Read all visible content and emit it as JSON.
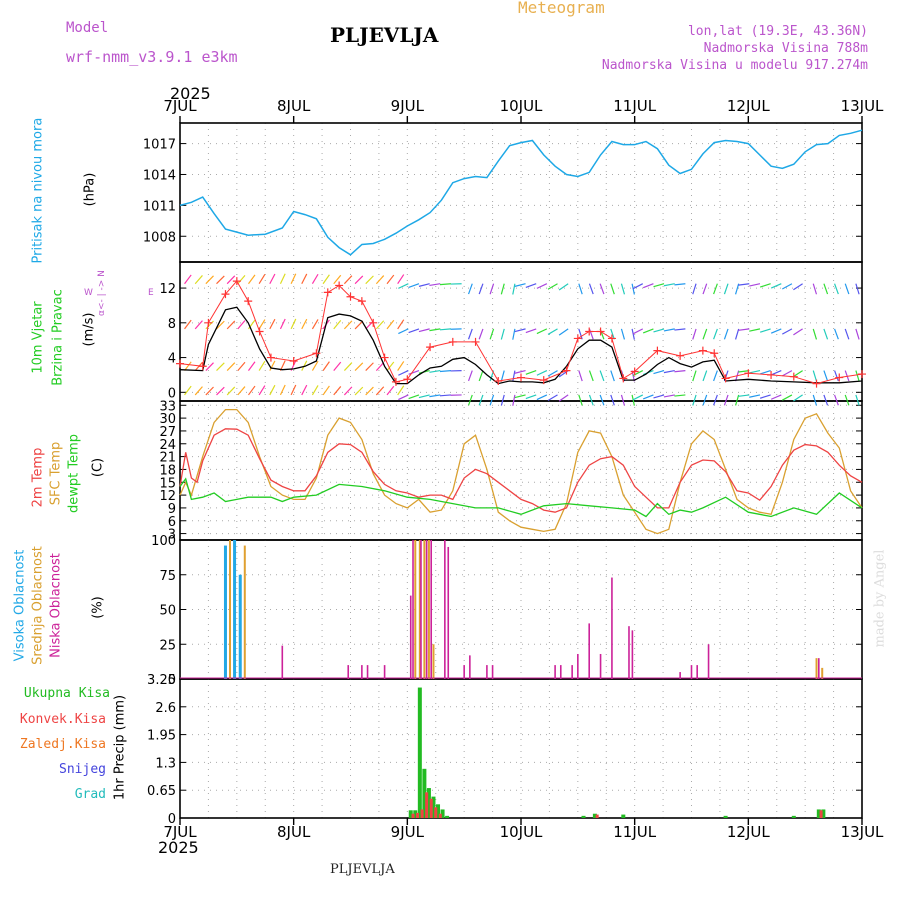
{
  "header": {
    "model_label": "Model",
    "model_name": "wrf-nmm_v3.9.1  e3km",
    "station": "PLJEVLJA",
    "meteogram": "Meteogram",
    "lonlat": "lon,lat (19.3E, 43.36N)",
    "altitude": "Nadmorska Visina 788m",
    "model_altitude": "Nadmorska Visina u modelu 917.274m",
    "year": "2025",
    "footer_station": "PLJEVLJA",
    "credit": "made by Angel"
  },
  "colors": {
    "pressure": "#1ea8e6",
    "wind_speed": "#000000",
    "gust": "#ff3333",
    "temp2m": "#ee4444",
    "sfc_temp": "#d9a030",
    "dewpoint": "#22cc22",
    "high_cloud": "#22a8e6",
    "mid_cloud": "#e0a030",
    "low_cloud": "#cc2299",
    "total_precip": "#22bb22",
    "conv_precip": "#ee4444",
    "frz_precip": "#ee7722",
    "snow": "#4444dd",
    "hail": "#22bbbb",
    "model_label": "#bb55cc",
    "meteogram_label": "#e8b050"
  },
  "icons": {
    "compass": "wind-direction-compass-icon",
    "barbs": "wind-arrow-icon"
  },
  "chart_data": [
    {
      "type": "line",
      "title": "Pritisak na nivou mora",
      "ylabel": "(hPa)",
      "x_ticks": [
        "7JUL",
        "8JUL",
        "9JUL",
        "10JUL",
        "11JUL",
        "12JUL",
        "13JUL"
      ],
      "ylim": [
        1005.5,
        1019
      ],
      "yticks": [
        1008,
        1011,
        1014,
        1017
      ],
      "series": [
        {
          "name": "Pritisak na nivou mora",
          "x": [
            0,
            0.1,
            0.2,
            0.3,
            0.4,
            0.5,
            0.6,
            0.75,
            0.9,
            1.0,
            1.1,
            1.2,
            1.3,
            1.4,
            1.5,
            1.6,
            1.7,
            1.8,
            1.9,
            2.0,
            2.1,
            2.2,
            2.3,
            2.4,
            2.5,
            2.6,
            2.7,
            2.8,
            2.9,
            3.0,
            3.1,
            3.2,
            3.3,
            3.4,
            3.5,
            3.6,
            3.7,
            3.8,
            3.9,
            4.0,
            4.1,
            4.2,
            4.3,
            4.4,
            4.5,
            4.6,
            4.7,
            4.8,
            4.9,
            5.0,
            5.1,
            5.2,
            5.3,
            5.4,
            5.5,
            5.6,
            5.7,
            5.8,
            5.9,
            6.0
          ],
          "values": [
            1011.0,
            1011.3,
            1011.8,
            1010.2,
            1008.7,
            1008.4,
            1008.1,
            1008.2,
            1008.8,
            1010.4,
            1010.1,
            1009.7,
            1007.9,
            1006.9,
            1006.2,
            1007.2,
            1007.3,
            1007.7,
            1008.3,
            1009.0,
            1009.6,
            1010.3,
            1011.5,
            1013.2,
            1013.6,
            1013.8,
            1013.7,
            1015.3,
            1016.8,
            1017.1,
            1017.3,
            1015.9,
            1014.8,
            1014.0,
            1013.8,
            1014.2,
            1015.9,
            1017.2,
            1016.9,
            1016.9,
            1017.2,
            1016.5,
            1014.9,
            1014.1,
            1014.5,
            1016.0,
            1017.1,
            1017.3,
            1017.2,
            1017.0,
            1015.9,
            1014.8,
            1014.6,
            1015.0,
            1016.2,
            1016.9,
            1017.0,
            1017.8,
            1018.0,
            1018.3
          ]
        }
      ]
    },
    {
      "type": "line",
      "title": "10m Vjetar Brzina i Pravac",
      "ylabel": "(m/s)",
      "compass_label": "W <-- | --> E   α<--|-->",
      "compass_n": "N",
      "compass_w": "W",
      "compass_e": "E",
      "compass_s": "α<-",
      "ylim": [
        -1,
        15
      ],
      "yticks": [
        0,
        4,
        8,
        12
      ],
      "series": [
        {
          "name": "speed",
          "x": [
            0,
            0.2,
            0.25,
            0.4,
            0.5,
            0.6,
            0.7,
            0.8,
            0.9,
            1.0,
            1.1,
            1.2,
            1.3,
            1.4,
            1.5,
            1.6,
            1.7,
            1.8,
            1.9,
            2.0,
            2.1,
            2.2,
            2.3,
            2.4,
            2.5,
            2.6,
            2.7,
            2.8,
            2.9,
            3.0,
            3.1,
            3.2,
            3.3,
            3.4,
            3.5,
            3.6,
            3.7,
            3.8,
            3.9,
            4.0,
            4.1,
            4.2,
            4.3,
            4.4,
            4.5,
            4.6,
            4.7,
            4.8,
            4.9,
            5.0,
            5.2,
            5.4,
            5.6,
            5.8,
            6.0
          ],
          "values": [
            2.6,
            2.5,
            5.5,
            9.5,
            9.8,
            8.0,
            5.0,
            2.8,
            2.6,
            2.7,
            3.0,
            3.6,
            8.6,
            9.0,
            8.8,
            8.2,
            6.0,
            3.0,
            1.0,
            1.0,
            2.0,
            2.8,
            3.0,
            3.8,
            4.0,
            3.2,
            2.0,
            1.0,
            1.3,
            1.2,
            1.2,
            1.1,
            1.5,
            3.0,
            5.0,
            6.0,
            6.0,
            5.2,
            1.4,
            1.4,
            2.1,
            3.2,
            4.0,
            3.3,
            2.9,
            3.5,
            3.7,
            1.3,
            1.4,
            1.5,
            1.3,
            1.2,
            1.1,
            1.1,
            1.3
          ]
        },
        {
          "name": "gusts",
          "x": [
            0,
            0.2,
            0.25,
            0.4,
            0.5,
            0.6,
            0.7,
            0.8,
            1.0,
            1.2,
            1.3,
            1.4,
            1.5,
            1.6,
            1.7,
            1.8,
            1.9,
            2.0,
            2.2,
            2.4,
            2.6,
            2.8,
            3.0,
            3.2,
            3.4,
            3.5,
            3.6,
            3.7,
            3.8,
            3.9,
            4.0,
            4.2,
            4.4,
            4.6,
            4.7,
            4.8,
            5.0,
            5.2,
            5.4,
            5.6,
            5.8,
            6.0
          ],
          "values": [
            3.3,
            3.0,
            8.0,
            11.3,
            12.8,
            10.5,
            7.0,
            4.0,
            3.6,
            4.5,
            11.5,
            12.3,
            11.0,
            10.5,
            8.0,
            4.0,
            1.2,
            1.5,
            5.2,
            5.8,
            5.8,
            1.3,
            1.7,
            1.4,
            2.5,
            6.2,
            7.0,
            7.0,
            6.2,
            1.6,
            2.4,
            4.8,
            4.2,
            4.8,
            4.5,
            1.6,
            2.2,
            2.0,
            1.8,
            1.0,
            1.7,
            2.1
          ]
        }
      ]
    },
    {
      "type": "line",
      "title": "2m Temp / SFC Temp / dewpt Temp",
      "ylabel": "(C)",
      "ylim": [
        1.5,
        34
      ],
      "yticks": [
        3,
        6,
        9,
        12,
        15,
        18,
        21,
        24,
        27,
        30,
        33
      ],
      "series": [
        {
          "name": "2m Temp",
          "x": [
            0,
            0.05,
            0.1,
            0.15,
            0.2,
            0.3,
            0.4,
            0.5,
            0.6,
            0.7,
            0.8,
            0.9,
            1.0,
            1.1,
            1.2,
            1.3,
            1.4,
            1.5,
            1.6,
            1.7,
            1.8,
            1.9,
            2.0,
            2.1,
            2.2,
            2.3,
            2.4,
            2.5,
            2.6,
            2.7,
            2.8,
            2.9,
            3.0,
            3.1,
            3.2,
            3.3,
            3.4,
            3.5,
            3.6,
            3.7,
            3.8,
            3.9,
            4.0,
            4.1,
            4.2,
            4.3,
            4.4,
            4.5,
            4.6,
            4.7,
            4.8,
            4.9,
            5.0,
            5.1,
            5.2,
            5.3,
            5.4,
            5.5,
            5.6,
            5.7,
            5.8,
            5.9,
            6.0
          ],
          "values": [
            14.0,
            22.0,
            16.0,
            15.0,
            20.0,
            26.0,
            27.5,
            27.4,
            26.0,
            20.5,
            15.5,
            14.0,
            13.0,
            13.0,
            16.5,
            22.0,
            24.0,
            23.8,
            22.0,
            17.5,
            14.5,
            13.0,
            12.5,
            11.5,
            12.0,
            12.0,
            11.0,
            16.0,
            18.0,
            17.0,
            15.0,
            13.0,
            11.0,
            10.0,
            8.5,
            8.0,
            9.0,
            15.0,
            19.0,
            20.5,
            21.0,
            19.0,
            14.0,
            11.5,
            9.0,
            9.0,
            15.0,
            19.0,
            20.2,
            20.0,
            17.5,
            13.0,
            12.5,
            10.8,
            14.0,
            19.0,
            22.5,
            23.8,
            23.5,
            22.0,
            19.0,
            16.5,
            15.0
          ]
        },
        {
          "name": "SFC Temp",
          "x": [
            0,
            0.05,
            0.1,
            0.2,
            0.3,
            0.4,
            0.5,
            0.6,
            0.7,
            0.8,
            0.9,
            1.0,
            1.1,
            1.2,
            1.3,
            1.4,
            1.5,
            1.6,
            1.7,
            1.8,
            1.9,
            2.0,
            2.1,
            2.2,
            2.3,
            2.4,
            2.5,
            2.6,
            2.7,
            2.8,
            2.9,
            3.0,
            3.1,
            3.2,
            3.3,
            3.4,
            3.5,
            3.6,
            3.7,
            3.8,
            3.9,
            4.0,
            4.1,
            4.2,
            4.3,
            4.4,
            4.5,
            4.6,
            4.7,
            4.8,
            4.9,
            5.0,
            5.1,
            5.2,
            5.3,
            5.4,
            5.5,
            5.6,
            5.7,
            5.8,
            5.9,
            6.0
          ],
          "values": [
            12.0,
            15.0,
            12.0,
            21.0,
            29.0,
            32.0,
            32.0,
            29.0,
            21.0,
            14.0,
            12.0,
            11.0,
            11.0,
            16.0,
            26.0,
            30.0,
            29.0,
            25.0,
            17.0,
            12.0,
            10.0,
            9.0,
            11.0,
            8.0,
            8.5,
            13.0,
            24.0,
            26.0,
            18.0,
            8.0,
            6.0,
            4.5,
            4.0,
            3.5,
            4.0,
            10.0,
            22.0,
            27.0,
            26.5,
            21.0,
            12.0,
            8.0,
            4.0,
            3.0,
            4.0,
            15.0,
            24.0,
            27.0,
            25.0,
            18.0,
            11.0,
            9.0,
            8.0,
            7.5,
            15.0,
            25.0,
            30.0,
            31.0,
            26.5,
            23.0,
            13.0,
            9.0
          ]
        },
        {
          "name": "dewpt Temp",
          "x": [
            0,
            0.05,
            0.1,
            0.2,
            0.3,
            0.4,
            0.5,
            0.6,
            0.7,
            0.8,
            0.9,
            1.0,
            1.2,
            1.4,
            1.6,
            1.8,
            2.0,
            2.2,
            2.4,
            2.6,
            2.8,
            3.0,
            3.2,
            3.4,
            3.6,
            3.8,
            4.0,
            4.1,
            4.2,
            4.3,
            4.4,
            4.5,
            4.6,
            4.8,
            5.0,
            5.2,
            5.4,
            5.6,
            5.8,
            6.0
          ],
          "values": [
            14.0,
            15.8,
            11.0,
            11.5,
            12.5,
            10.5,
            11.0,
            11.5,
            11.5,
            11.5,
            10.5,
            11.5,
            12.0,
            14.5,
            14.0,
            13.0,
            11.5,
            11.0,
            10.0,
            9.0,
            9.0,
            7.5,
            9.5,
            10.0,
            9.5,
            9.0,
            8.5,
            7.0,
            10.0,
            7.5,
            8.5,
            8.0,
            9.0,
            11.5,
            8.0,
            7.0,
            9.0,
            7.5,
            12.5,
            9.0
          ]
        }
      ]
    },
    {
      "type": "bar",
      "title": "Visoka / Srednja / Niska Oblacnost",
      "ylabel": "(%)",
      "ylim": [
        0,
        100
      ],
      "yticks": [
        0,
        25,
        50,
        75,
        100
      ],
      "series": [
        {
          "name": "Visoka Oblacnost",
          "x": [
            0.4,
            0.48,
            0.53
          ],
          "values": [
            96,
            100,
            75
          ]
        },
        {
          "name": "Srednja Oblacnost",
          "x": [
            0.44,
            0.57,
            2.07,
            2.11,
            2.15,
            2.19,
            2.23,
            5.6,
            5.65
          ],
          "values": [
            100,
            96,
            100,
            100,
            100,
            100,
            25,
            15,
            8
          ]
        },
        {
          "name": "Niska Oblacnost",
          "x": [
            0.9,
            1.48,
            1.6,
            1.65,
            1.8,
            2.03,
            2.05,
            2.12,
            2.17,
            2.21,
            2.33,
            2.36,
            2.5,
            2.55,
            2.7,
            2.75,
            3.3,
            3.35,
            3.45,
            3.5,
            3.6,
            3.7,
            3.8,
            3.95,
            3.98,
            4.4,
            4.5,
            4.55,
            4.65,
            5.62
          ],
          "values": [
            24,
            10,
            10,
            10,
            10,
            60,
            100,
            100,
            100,
            100,
            100,
            95,
            10,
            17,
            10,
            10,
            10,
            10,
            10,
            18,
            40,
            18,
            73,
            38,
            35,
            5,
            10,
            10,
            25,
            15
          ]
        }
      ]
    },
    {
      "type": "bar",
      "title": "1hr Precip",
      "ylabel": "1hr Precip (mm)",
      "ylim": [
        0,
        3.25
      ],
      "yticks": [
        0,
        0.65,
        1.3,
        1.95,
        2.6,
        3.25
      ],
      "legend": [
        "Ukupna Kisa",
        "Konvek.Kisa",
        "Zaledj.Kisa",
        "Snijeg",
        "Grad"
      ],
      "series": [
        {
          "name": "Ukupna Kisa",
          "x": [
            2.03,
            2.07,
            2.11,
            2.15,
            2.19,
            2.23,
            2.27,
            2.31,
            2.35,
            3.55,
            3.65,
            3.9,
            4.8,
            5.4,
            5.62,
            5.66
          ],
          "values": [
            0.18,
            0.18,
            3.05,
            1.15,
            0.7,
            0.5,
            0.32,
            0.2,
            0.05,
            0.05,
            0.1,
            0.08,
            0.05,
            0.05,
            0.2,
            0.2
          ]
        },
        {
          "name": "Konvek.Kisa",
          "x": [
            2.05,
            2.09,
            2.13,
            2.17,
            2.21,
            2.25,
            2.29,
            3.67,
            5.64
          ],
          "values": [
            0.1,
            0.12,
            0.2,
            0.6,
            0.45,
            0.25,
            0.1,
            0.08,
            0.18
          ]
        }
      ]
    }
  ]
}
